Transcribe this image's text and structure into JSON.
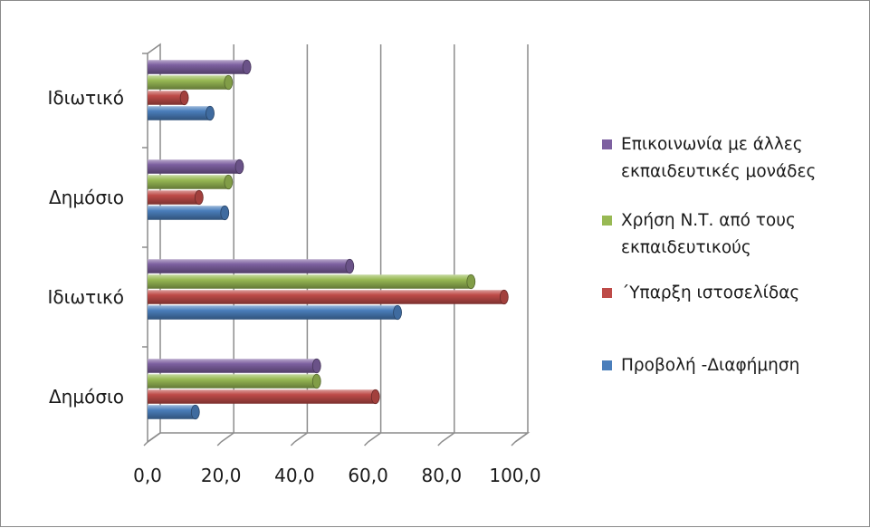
{
  "chart_data": {
    "type": "bar",
    "orientation": "horizontal",
    "style": "3d-cylinder",
    "categories": [
      "Δημόσιο",
      "Ιδιωτικό",
      "Δημόσιο",
      "Ιδιωτικό"
    ],
    "series": [
      {
        "name": "Προβολή -Διαφήμηση",
        "color": "#4a7ebb",
        "values": [
          13.0,
          68.0,
          21.0,
          17.0
        ]
      },
      {
        "name": "΄Υπαρξη ιστοσελίδας",
        "color": "#be4b48",
        "values": [
          62.0,
          97.0,
          14.0,
          10.0
        ]
      },
      {
        "name": "Χρήση Ν.Τ. από τους εκπαιδευτικούς",
        "color": "#98b954",
        "values": [
          46.0,
          88.0,
          22.0,
          22.0
        ]
      },
      {
        "name": "Επικοινωνία με άλλες εκπαιδευτικές μονάδες",
        "color": "#7d60a0",
        "values": [
          46.0,
          55.0,
          25.0,
          27.0
        ]
      }
    ],
    "xlim": [
      0,
      100
    ],
    "x_ticks": [
      "0,0",
      "20,0",
      "40,0",
      "60,0",
      "80,0",
      "100,0"
    ],
    "grid": true,
    "legend_position": "right"
  }
}
